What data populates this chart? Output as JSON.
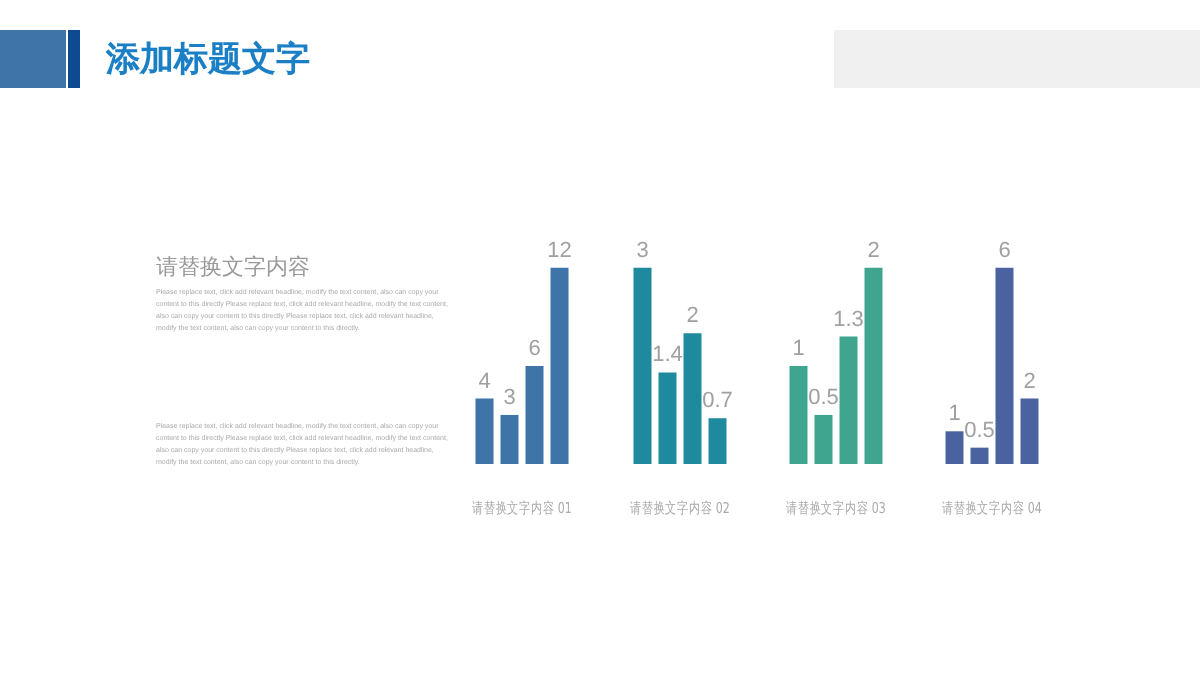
{
  "chart_data": [
    {
      "type": "other",
      "title": "添加标题文字",
      "subtitle": "请替换文字内容",
      "annotations": [
        "Please replace text, click add relevant headline, modify the text content, also can copy your content to this directly Please replace text, click add relevant headline, modify the text content, also can copy your content to this directly Please replace text, click add relevant headline, modify the text content, also can copy your content to this directly.",
        "Please replace text, click add relevant headline, modify the text content, also can copy your content to this directly Please replace text, click add relevant headline, modify the text content, also can copy your content to this directly Please replace text, click add relevant headline, modify the text content, also can copy your content to this directly."
      ]
    },
    {
      "type": "bar",
      "xlabel": "请替换文字内容 01",
      "categories": [
        null,
        null,
        null,
        null
      ],
      "values": [
        4,
        3,
        6,
        12
      ],
      "color": "#3f74a8",
      "data_labels": true,
      "tick_labels": false
    },
    {
      "type": "bar",
      "xlabel": "请替换文字内容 02",
      "categories": [
        null,
        null,
        null,
        null
      ],
      "values": [
        3,
        1.4,
        2,
        0.7
      ],
      "color": "#1f8a9e",
      "data_labels": true,
      "tick_labels": false
    },
    {
      "type": "bar",
      "xlabel": "请替换文字内容 03",
      "categories": [
        null,
        null,
        null,
        null
      ],
      "values": [
        1,
        0.5,
        1.3,
        2
      ],
      "color": "#3fa58f",
      "data_labels": true,
      "tick_labels": false
    },
    {
      "type": "bar",
      "xlabel": "请替换文字内容 04",
      "categories": [
        null,
        null,
        null,
        null
      ],
      "values": [
        1,
        0.5,
        6,
        2
      ],
      "color": "#4a63a0",
      "data_labels": true,
      "tick_labels": false
    }
  ]
}
